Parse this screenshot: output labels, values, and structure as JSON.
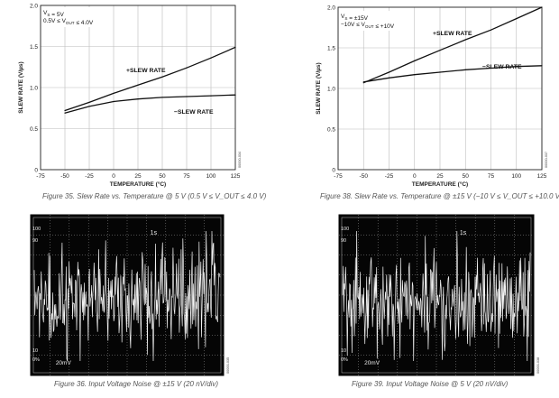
{
  "chart_data": [
    {
      "id": "fig35",
      "type": "line",
      "conditions": [
        "V<sub>S</sub> = 5V",
        "0.5V ≤ V<sub>OUT</sub> ≤ 4.0V"
      ],
      "conditions_plain": [
        "V_S = 5V",
        "0.5V ≤ V_OUT ≤ 4.0V"
      ],
      "xlabel": "TEMPERATURE (°C)",
      "ylabel": "SLEW RATE (V/µs)",
      "xlim": [
        -75,
        125
      ],
      "ylim": [
        0,
        2.0
      ],
      "xticks": [
        -75,
        -50,
        -25,
        0,
        25,
        50,
        75,
        100,
        125
      ],
      "yticks": [
        0,
        0.5,
        1.0,
        1.5,
        2.0
      ],
      "ytick_labels": [
        "0",
        "0.5",
        "1.0",
        "1.5",
        "2.0"
      ],
      "grid": true,
      "series": [
        {
          "name": "+SLEW RATE",
          "x": [
            -50,
            -25,
            0,
            25,
            50,
            75,
            100,
            125
          ],
          "values": [
            0.72,
            0.82,
            0.93,
            1.03,
            1.13,
            1.24,
            1.36,
            1.49
          ]
        },
        {
          "name": "−SLEW RATE",
          "x": [
            -50,
            -25,
            0,
            25,
            50,
            75,
            100,
            125
          ],
          "values": [
            0.69,
            0.77,
            0.83,
            0.86,
            0.88,
            0.89,
            0.9,
            0.91
          ]
        }
      ],
      "caption": "Figure 35. Slew Rate vs. Temperature @ 5 V (0.5 V ≤ V_OUT ≤ 4.0 V)",
      "code": "00000-034"
    },
    {
      "id": "fig38",
      "type": "line",
      "conditions": [
        "V<sub>S</sub> = ±15V",
        "−10V ≤ V<sub>OUT</sub> ≤ +10V"
      ],
      "conditions_plain": [
        "V_S = ±15V",
        "−10V ≤ V_OUT ≤ +10V"
      ],
      "xlabel": "TEMPERATURE (°C)",
      "ylabel": "SLEW RATE (V/µs)",
      "xlim": [
        -75,
        125
      ],
      "ylim": [
        0,
        2.0
      ],
      "xticks": [
        -75,
        -50,
        -25,
        0,
        25,
        50,
        75,
        100,
        125
      ],
      "yticks": [
        0,
        0.5,
        1.0,
        1.5,
        2.0
      ],
      "ytick_labels": [
        "0",
        "0.5",
        "1.0",
        "1.5",
        "2.0"
      ],
      "grid": true,
      "series": [
        {
          "name": "+SLEW RATE",
          "x": [
            -50,
            -25,
            0,
            25,
            50,
            75,
            100,
            125
          ],
          "values": [
            1.07,
            1.2,
            1.34,
            1.47,
            1.6,
            1.72,
            1.86,
            2.0
          ]
        },
        {
          "name": "−SLEW RATE",
          "x": [
            -50,
            -25,
            0,
            25,
            50,
            75,
            100,
            125
          ],
          "values": [
            1.08,
            1.13,
            1.17,
            1.2,
            1.23,
            1.25,
            1.27,
            1.28
          ]
        }
      ],
      "caption": "Figure 38. Slew Rate vs. Temperature @ ±15 V (−10 V ≤ V_OUT ≤ +10.0 V)",
      "code": "00000-037"
    },
    {
      "id": "fig36",
      "type": "line",
      "subtype": "oscilloscope",
      "markers": [
        "100",
        "90",
        "10",
        "0%"
      ],
      "timebase": "1s",
      "scale": "20mV",
      "caption": "Figure 36. Input Voltage Noise @ ±15 V (20 nV/div)",
      "code": "00000-035"
    },
    {
      "id": "fig39",
      "type": "line",
      "subtype": "oscilloscope",
      "markers": [
        "100",
        "90",
        "10",
        "0%"
      ],
      "timebase": "1s",
      "scale": "20mV",
      "caption": "Figure 39. Input Voltage Noise @ 5 V (20 nV/div)",
      "code": "00000-038"
    }
  ]
}
